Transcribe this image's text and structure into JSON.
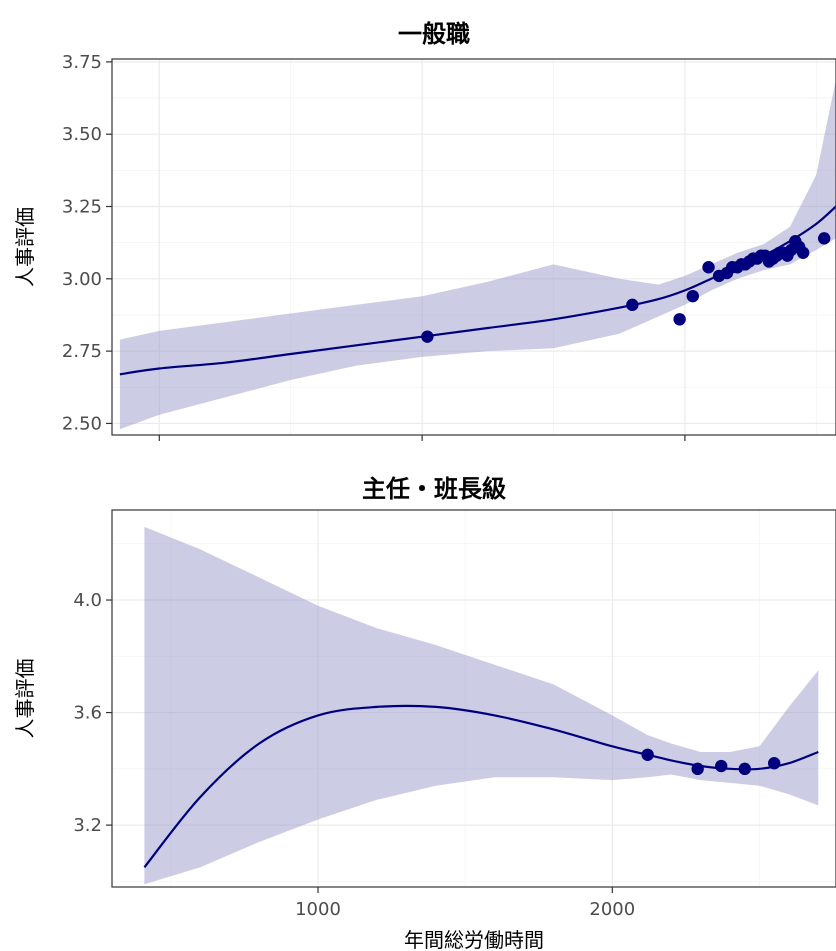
{
  "chart_data": [
    {
      "type": "scatter",
      "title": "一般職",
      "xlabel": "",
      "ylabel": "人事評価",
      "xlim": [
        -180,
        2575
      ],
      "ylim": [
        2.46,
        3.76
      ],
      "x_ticks": [
        0,
        1000,
        2000
      ],
      "x_tick_labels": [
        "",
        "",
        ""
      ],
      "y_ticks": [
        2.5,
        2.75,
        3.0,
        3.25,
        3.5,
        3.75
      ],
      "y_tick_labels": [
        "2.50",
        "2.75",
        "3.00",
        "3.25",
        "3.50",
        "3.75"
      ],
      "grid": true,
      "colors": {
        "point": "#00007F",
        "line": "#00007F",
        "band": "#9999CC"
      },
      "points": {
        "x": [
          1020,
          1800,
          1980,
          2030,
          2090,
          2130,
          2160,
          2180,
          2200,
          2215,
          2230,
          2245,
          2260,
          2275,
          2290,
          2305,
          2320,
          2335,
          2350,
          2360,
          2375,
          2390,
          2405,
          2420,
          2435,
          2450,
          2530
        ],
        "y": [
          2.8,
          2.91,
          2.86,
          2.94,
          3.04,
          3.01,
          3.02,
          3.04,
          3.04,
          3.05,
          3.05,
          3.06,
          3.07,
          3.07,
          3.08,
          3.08,
          3.06,
          3.07,
          3.08,
          3.09,
          3.09,
          3.08,
          3.1,
          3.13,
          3.11,
          3.09,
          3.14
        ]
      },
      "smooth": {
        "x": [
          -150,
          0,
          250,
          500,
          750,
          1000,
          1250,
          1500,
          1750,
          1900,
          2000,
          2100,
          2200,
          2300,
          2400,
          2500,
          2575
        ],
        "y": [
          2.67,
          2.69,
          2.71,
          2.74,
          2.77,
          2.8,
          2.83,
          2.86,
          2.9,
          2.93,
          2.96,
          3.0,
          3.04,
          3.08,
          3.13,
          3.19,
          3.25
        ],
        "lower": [
          2.48,
          2.53,
          2.59,
          2.65,
          2.7,
          2.73,
          2.75,
          2.76,
          2.81,
          2.87,
          2.91,
          2.96,
          3.0,
          3.03,
          3.05,
          3.1,
          3.14
        ],
        "upper": [
          2.79,
          2.82,
          2.85,
          2.88,
          2.91,
          2.94,
          2.99,
          3.05,
          3.0,
          2.98,
          3.01,
          3.05,
          3.09,
          3.12,
          3.18,
          3.36,
          3.69
        ]
      }
    },
    {
      "type": "scatter",
      "title": "主任・班長級",
      "xlabel": "年間総労働時間",
      "ylabel": "人事評価",
      "xlim": [
        300,
        2760
      ],
      "ylim": [
        2.98,
        4.32
      ],
      "x_ticks": [
        1000,
        2000
      ],
      "x_tick_labels": [
        "1000",
        "2000"
      ],
      "y_ticks": [
        3.2,
        3.6,
        4.0
      ],
      "y_tick_labels": [
        "3.2",
        "3.6",
        "4.0"
      ],
      "grid": true,
      "colors": {
        "point": "#00007F",
        "line": "#00007F",
        "band": "#9999CC"
      },
      "points": {
        "x": [
          2120,
          2290,
          2370,
          2450,
          2550
        ],
        "y": [
          3.45,
          3.4,
          3.41,
          3.4,
          3.42
        ]
      },
      "smooth": {
        "x": [
          410,
          600,
          800,
          1000,
          1200,
          1400,
          1600,
          1800,
          2000,
          2120,
          2200,
          2300,
          2400,
          2500,
          2600,
          2700
        ],
        "y": [
          3.05,
          3.3,
          3.49,
          3.59,
          3.62,
          3.62,
          3.59,
          3.54,
          3.48,
          3.45,
          3.43,
          3.41,
          3.4,
          3.4,
          3.42,
          3.46
        ],
        "lower": [
          2.99,
          3.05,
          3.14,
          3.22,
          3.29,
          3.34,
          3.37,
          3.37,
          3.36,
          3.37,
          3.38,
          3.36,
          3.35,
          3.34,
          3.31,
          3.27
        ],
        "upper": [
          4.26,
          4.18,
          4.08,
          3.98,
          3.9,
          3.84,
          3.77,
          3.7,
          3.59,
          3.52,
          3.49,
          3.46,
          3.46,
          3.48,
          3.62,
          3.75
        ]
      }
    }
  ]
}
